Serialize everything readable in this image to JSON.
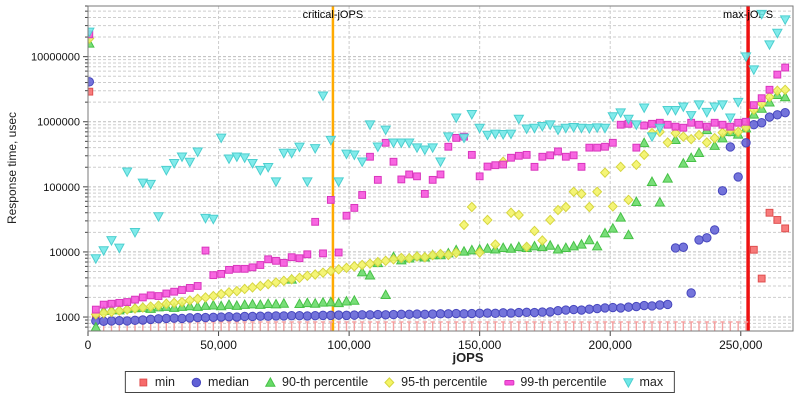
{
  "chart_data": {
    "type": "scatter",
    "title": "",
    "xlabel": "jOPS",
    "ylabel": "Response time, usec",
    "grid": true,
    "legend_position": "bottom",
    "x_axis": {
      "min": 0,
      "max": 270000,
      "ticks": [
        {
          "value": 0,
          "label": "0"
        },
        {
          "value": 50000,
          "label": "50,000"
        },
        {
          "value": 100000,
          "label": "100,000"
        },
        {
          "value": 150000,
          "label": "150,000"
        },
        {
          "value": 200000,
          "label": "200,000"
        },
        {
          "value": 250000,
          "label": "250,000"
        }
      ]
    },
    "y_axis": {
      "scale": "log",
      "min": 610,
      "max": 60000000,
      "ticks": [
        {
          "value": 1000,
          "label": "1000"
        },
        {
          "value": 10000,
          "label": "10000"
        },
        {
          "value": 100000,
          "label": "100000"
        },
        {
          "value": 1000000,
          "label": "1000000"
        },
        {
          "value": 10000000,
          "label": "10000000"
        }
      ]
    },
    "ref_lines": [
      {
        "label": "critical-jOPS",
        "x": 93800,
        "color": "#ffaa00",
        "width": 2.5
      },
      {
        "label": "max-jOPS",
        "x": 252800,
        "color": "#ee1111",
        "width": 3.5
      }
    ],
    "x": [
      500,
      3000,
      6000,
      9000,
      12000,
      15000,
      18000,
      21000,
      24000,
      27000,
      30000,
      33000,
      36000,
      39000,
      42000,
      45000,
      48000,
      51000,
      54000,
      57000,
      60000,
      63000,
      66000,
      69000,
      72000,
      75000,
      78000,
      81000,
      84000,
      87000,
      90000,
      93000,
      96000,
      99000,
      102000,
      105000,
      108000,
      111000,
      114000,
      117000,
      120000,
      123000,
      126000,
      129000,
      132000,
      135000,
      138000,
      141000,
      144000,
      147000,
      150000,
      153000,
      156000,
      159000,
      162000,
      165000,
      168000,
      171000,
      174000,
      177000,
      180000,
      183000,
      186000,
      189000,
      192000,
      195000,
      198000,
      201000,
      204000,
      207000,
      210000,
      213000,
      216000,
      219000,
      222000,
      225000,
      228000,
      231000,
      234000,
      237000,
      240000,
      243000,
      246000,
      249000,
      252000,
      255000,
      258000,
      261000,
      264000,
      267000
    ],
    "series": [
      {
        "id": "min",
        "name": "min",
        "marker": "square",
        "color": "#f76a6a",
        "stroke": "#df4f4f",
        "tick_below": 1000,
        "y": [
          2900000,
          1050,
          840,
          840,
          840,
          840,
          840,
          840,
          840,
          840,
          840,
          840,
          840,
          840,
          840,
          840,
          840,
          840,
          840,
          840,
          840,
          840,
          840,
          840,
          840,
          840,
          840,
          840,
          840,
          840,
          840,
          840,
          840,
          840,
          840,
          840,
          840,
          840,
          840,
          840,
          840,
          840,
          840,
          840,
          840,
          840,
          840,
          840,
          840,
          840,
          840,
          840,
          840,
          840,
          840,
          840,
          840,
          840,
          840,
          840,
          840,
          840,
          840,
          840,
          840,
          840,
          840,
          840,
          840,
          840,
          840,
          840,
          840,
          840,
          840,
          840,
          840,
          840,
          840,
          840,
          840,
          840,
          840,
          840,
          840,
          10800,
          3900,
          40000,
          31000,
          23000
        ]
      },
      {
        "id": "median",
        "name": "median",
        "marker": "circle",
        "color": "#6161d6",
        "stroke": "#4646bd",
        "y": [
          4100000,
          870,
          860,
          870,
          880,
          870,
          890,
          900,
          920,
          940,
          950,
          960,
          950,
          970,
          980,
          980,
          990,
          1000,
          1010,
          1000,
          1020,
          1020,
          1030,
          1030,
          1040,
          1040,
          1050,
          1050,
          1040,
          1050,
          1060,
          1060,
          1070,
          1060,
          1070,
          1080,
          1080,
          1090,
          1080,
          1090,
          1100,
          1100,
          1110,
          1100,
          1110,
          1120,
          1120,
          1130,
          1120,
          1130,
          1140,
          1150,
          1140,
          1160,
          1150,
          1170,
          1180,
          1170,
          1190,
          1200,
          1250,
          1280,
          1300,
          1280,
          1320,
          1350,
          1380,
          1400,
          1380,
          1420,
          1450,
          1500,
          1480,
          1530,
          1560,
          11500,
          11800,
          2340,
          15300,
          16500,
          21800,
          87000,
          410000,
          142000,
          475000,
          900000,
          965000,
          1180000,
          1280000,
          1380000
        ]
      },
      {
        "id": "p90",
        "name": "90-th percentile",
        "marker": "triangle-up",
        "color": "#67da67",
        "stroke": "#46c146",
        "y": [
          16000000,
          700,
          1250,
          1300,
          1280,
          1350,
          1380,
          1400,
          1350,
          1420,
          1450,
          1400,
          1450,
          1480,
          1450,
          1500,
          1520,
          1480,
          1550,
          1500,
          1550,
          1580,
          1550,
          1600,
          1580,
          1620,
          3800,
          1600,
          1650,
          1620,
          1680,
          1700,
          1650,
          1750,
          1800,
          4900,
          4400,
          6800,
          2200,
          8400,
          7500,
          8000,
          8600,
          8300,
          9000,
          9000,
          9600,
          10700,
          10200,
          10700,
          11000,
          11300,
          11000,
          11600,
          11300,
          12000,
          11600,
          12300,
          12000,
          12600,
          11000,
          11600,
          12300,
          13100,
          15300,
          12300,
          19500,
          23000,
          34000,
          18300,
          59000,
          475000,
          120000,
          58000,
          135000,
          530000,
          230000,
          280000,
          335000,
          750000,
          430000,
          560000,
          700000,
          640000,
          800000,
          1300000,
          1600000,
          2000000,
          2600000,
          2400000
        ]
      },
      {
        "id": "p95",
        "name": "95-th percentile",
        "marker": "diamond",
        "color": "#f4f464",
        "stroke": "#d6d640",
        "y": [
          19000000,
          1100,
          1150,
          1200,
          1250,
          1300,
          1350,
          1400,
          1450,
          1500,
          1600,
          1650,
          1700,
          1800,
          1900,
          2000,
          2100,
          2250,
          2400,
          2500,
          2700,
          2850,
          3000,
          3200,
          3400,
          3600,
          3800,
          4000,
          4300,
          4500,
          4800,
          5100,
          5400,
          5700,
          6000,
          6300,
          6600,
          7000,
          7300,
          7700,
          8100,
          8000,
          8500,
          8300,
          8900,
          9300,
          9000,
          9700,
          26000,
          49000,
          9800,
          31000,
          13000,
          243000,
          40000,
          37000,
          12000,
          21000,
          15000,
          31000,
          44000,
          49000,
          84000,
          78000,
          49000,
          84000,
          165000,
          50000,
          203000,
          63000,
          218000,
          310000,
          670000,
          700000,
          480000,
          670000,
          590000,
          540000,
          625000,
          480000,
          560000,
          680000,
          750000,
          700000,
          820000,
          1530000,
          1900000,
          2400000,
          3000000,
          3100000
        ]
      },
      {
        "id": "p99",
        "name": "99-th percentile",
        "marker": "square",
        "color": "#f751dd",
        "stroke": "#d936bd",
        "y": [
          22000000,
          1300,
          1550,
          1600,
          1650,
          1700,
          1850,
          2000,
          2150,
          2100,
          2300,
          2450,
          2600,
          2800,
          3000,
          10500,
          4400,
          4600,
          5300,
          5500,
          5500,
          5800,
          6300,
          7700,
          7300,
          6800,
          8300,
          8000,
          9200,
          29000,
          9500,
          63000,
          9800,
          36000,
          47500,
          75000,
          290000,
          128000,
          475000,
          243000,
          130000,
          155000,
          145000,
          78000,
          128000,
          155000,
          413000,
          565000,
          590000,
          310000,
          145000,
          205000,
          215000,
          220000,
          280000,
          300000,
          310000,
          203000,
          290000,
          305000,
          350000,
          290000,
          305000,
          203000,
          400000,
          400000,
          413000,
          475000,
          900000,
          930000,
          400000,
          875000,
          930000,
          965000,
          900000,
          840000,
          810000,
          965000,
          900000,
          840000,
          965000,
          900000,
          840000,
          965000,
          1000000,
          1800000,
          2300000,
          3100000,
          5300000,
          6800000
        ]
      },
      {
        "id": "max",
        "name": "max",
        "marker": "triangle-down",
        "color": "#6fe8e8",
        "stroke": "#4ccfcf",
        "y": [
          24000000,
          7900,
          10500,
          15000,
          11500,
          170000,
          20000,
          115000,
          110000,
          35000,
          180000,
          230000,
          290000,
          240000,
          345000,
          33000,
          32000,
          565000,
          270000,
          290000,
          280000,
          230000,
          180000,
          200000,
          120000,
          330000,
          330000,
          410000,
          120000,
          390000,
          2500000,
          520000,
          120000,
          320000,
          310000,
          243000,
          900000,
          413000,
          750000,
          475000,
          475000,
          475000,
          400000,
          370000,
          400000,
          243000,
          590000,
          1150000,
          565000,
          1300000,
          800000,
          625000,
          650000,
          640000,
          650000,
          1100000,
          780000,
          800000,
          850000,
          900000,
          750000,
          800000,
          820000,
          800000,
          790000,
          810000,
          800000,
          1200000,
          1380000,
          1100000,
          900000,
          1640000,
          590000,
          800000,
          1500000,
          1500000,
          1700000,
          1250000,
          1830000,
          1400000,
          1700000,
          1830000,
          1150000,
          2000000,
          10000000,
          6300000,
          45000000,
          15300000,
          23000000,
          37000000
        ]
      }
    ]
  }
}
